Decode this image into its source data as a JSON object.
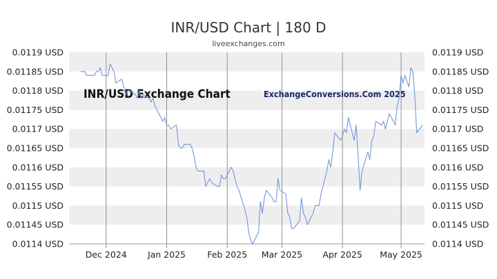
{
  "page": {
    "title": "INR/USD Chart | 180 D",
    "subtitle": "liveexchanges.com"
  },
  "chart_data": {
    "type": "line",
    "title": "INR/USD Chart | 180 D",
    "subtitle": "liveexchanges.com",
    "watermarks": [
      "INR/USD Exchange Chart",
      "ExchangeConversions.Com 2025"
    ],
    "xlabel": "",
    "ylabel": "",
    "ylim": [
      0.0114,
      0.0119
    ],
    "y_ticks": [
      0.0114,
      0.01145,
      0.0115,
      0.01155,
      0.0116,
      0.01165,
      0.0117,
      0.01175,
      0.0118,
      0.01185,
      0.0119
    ],
    "y_tick_labels": [
      "0.0114 USD",
      "0.01145 USD",
      "0.0115 USD",
      "0.01155 USD",
      "0.0116 USD",
      "0.01165 USD",
      "0.0117 USD",
      "0.01175 USD",
      "0.0118 USD",
      "0.01185 USD",
      "0.0119 USD"
    ],
    "x_range": [
      "2024-11-12",
      "2025-05-13"
    ],
    "x_ticks": [
      {
        "date": "2024-12-01",
        "label": "Dec 2024"
      },
      {
        "date": "2025-01-01",
        "label": "Jan 2025"
      },
      {
        "date": "2025-02-01",
        "label": "Feb 2025"
      },
      {
        "date": "2025-03-01",
        "label": "Mar 2025"
      },
      {
        "date": "2025-04-01",
        "label": "Apr 2025"
      },
      {
        "date": "2025-05-01",
        "label": "May 2025"
      }
    ],
    "grid": true,
    "legend": "none",
    "line_color": "#7196d8",
    "band_color": "#eeeeee",
    "series": [
      {
        "points": [
          [
            "2024-11-18",
            0.01185
          ],
          [
            "2024-11-20",
            0.01185
          ],
          [
            "2024-11-21",
            0.01184
          ],
          [
            "2024-11-25",
            0.01184
          ],
          [
            "2024-11-26",
            0.01185
          ],
          [
            "2024-11-27",
            0.01185
          ],
          [
            "2024-11-28",
            0.01186
          ],
          [
            "2024-11-29",
            0.01184
          ],
          [
            "2024-12-02",
            0.01184
          ],
          [
            "2024-12-03",
            0.01187
          ],
          [
            "2024-12-04",
            0.01186
          ],
          [
            "2024-12-05",
            0.01185
          ],
          [
            "2024-12-06",
            0.01182
          ],
          [
            "2024-12-09",
            0.01183
          ],
          [
            "2024-12-10",
            0.01181
          ],
          [
            "2024-12-11",
            0.01179
          ],
          [
            "2024-12-12",
            0.0118
          ],
          [
            "2024-12-13",
            0.0118
          ],
          [
            "2024-12-16",
            0.01179
          ],
          [
            "2024-12-17",
            0.01178
          ],
          [
            "2024-12-18",
            0.0118
          ],
          [
            "2024-12-19",
            0.01178
          ],
          [
            "2024-12-20",
            0.01179
          ],
          [
            "2024-12-23",
            0.01178
          ],
          [
            "2024-12-24",
            0.01177
          ],
          [
            "2024-12-25",
            0.01178
          ],
          [
            "2024-12-26",
            0.01176
          ],
          [
            "2024-12-27",
            0.01175
          ],
          [
            "2024-12-30",
            0.01172
          ],
          [
            "2024-12-31",
            0.01173
          ],
          [
            "2025-01-01",
            0.01171
          ],
          [
            "2025-01-02",
            0.01171
          ],
          [
            "2025-01-03",
            0.0117
          ],
          [
            "2025-01-06",
            0.01171
          ],
          [
            "2025-01-07",
            0.01166
          ],
          [
            "2025-01-08",
            0.01165
          ],
          [
            "2025-01-09",
            0.01165
          ],
          [
            "2025-01-10",
            0.01166
          ],
          [
            "2025-01-13",
            0.01166
          ],
          [
            "2025-01-14",
            0.01165
          ],
          [
            "2025-01-15",
            0.01163
          ],
          [
            "2025-01-16",
            0.0116
          ],
          [
            "2025-01-17",
            0.01159
          ],
          [
            "2025-01-20",
            0.01159
          ],
          [
            "2025-01-21",
            0.01155
          ],
          [
            "2025-01-22",
            0.01156
          ],
          [
            "2025-01-23",
            0.01157
          ],
          [
            "2025-01-24",
            0.01156
          ],
          [
            "2025-01-27",
            0.01155
          ],
          [
            "2025-01-28",
            0.01155
          ],
          [
            "2025-01-29",
            0.01158
          ],
          [
            "2025-01-30",
            0.01157
          ],
          [
            "2025-01-31",
            0.01157
          ],
          [
            "2025-02-03",
            0.0116
          ],
          [
            "2025-02-04",
            0.01159
          ],
          [
            "2025-02-05",
            0.01157
          ],
          [
            "2025-02-06",
            0.01155
          ],
          [
            "2025-02-07",
            0.01154
          ],
          [
            "2025-02-10",
            0.01149
          ],
          [
            "2025-02-11",
            0.01147
          ],
          [
            "2025-02-12",
            0.01143
          ],
          [
            "2025-02-13",
            0.01141
          ],
          [
            "2025-02-14",
            0.0114
          ],
          [
            "2025-02-17",
            0.01143
          ],
          [
            "2025-02-18",
            0.01151
          ],
          [
            "2025-02-19",
            0.01148
          ],
          [
            "2025-02-20",
            0.01152
          ],
          [
            "2025-02-21",
            0.01154
          ],
          [
            "2025-02-24",
            0.01152
          ],
          [
            "2025-02-25",
            0.01151
          ],
          [
            "2025-02-26",
            0.01151
          ],
          [
            "2025-02-27",
            0.01157
          ],
          [
            "2025-02-28",
            0.01154
          ],
          [
            "2025-03-03",
            0.01153
          ],
          [
            "2025-03-04",
            0.01148
          ],
          [
            "2025-03-05",
            0.01147
          ],
          [
            "2025-03-06",
            0.01144
          ],
          [
            "2025-03-07",
            0.01144
          ],
          [
            "2025-03-10",
            0.01146
          ],
          [
            "2025-03-11",
            0.01152
          ],
          [
            "2025-03-12",
            0.01148
          ],
          [
            "2025-03-13",
            0.01147
          ],
          [
            "2025-03-14",
            0.01145
          ],
          [
            "2025-03-17",
            0.01148
          ],
          [
            "2025-03-18",
            0.0115
          ],
          [
            "2025-03-19",
            0.0115
          ],
          [
            "2025-03-20",
            0.0115
          ],
          [
            "2025-03-21",
            0.01153
          ],
          [
            "2025-03-24",
            0.01159
          ],
          [
            "2025-03-25",
            0.01162
          ],
          [
            "2025-03-26",
            0.0116
          ],
          [
            "2025-03-27",
            0.01164
          ],
          [
            "2025-03-28",
            0.01169
          ],
          [
            "2025-03-31",
            0.01167
          ],
          [
            "2025-04-01",
            0.01168
          ],
          [
            "2025-04-02",
            0.0117
          ],
          [
            "2025-04-03",
            0.01169
          ],
          [
            "2025-04-04",
            0.01173
          ],
          [
            "2025-04-07",
            0.01167
          ],
          [
            "2025-04-08",
            0.01171
          ],
          [
            "2025-04-09",
            0.01163
          ],
          [
            "2025-04-10",
            0.01154
          ],
          [
            "2025-04-11",
            0.01159
          ],
          [
            "2025-04-14",
            0.01164
          ],
          [
            "2025-04-15",
            0.01162
          ],
          [
            "2025-04-16",
            0.01167
          ],
          [
            "2025-04-17",
            0.01168
          ],
          [
            "2025-04-18",
            0.01172
          ],
          [
            "2025-04-21",
            0.01171
          ],
          [
            "2025-04-22",
            0.01172
          ],
          [
            "2025-04-23",
            0.0117
          ],
          [
            "2025-04-24",
            0.01172
          ],
          [
            "2025-04-25",
            0.01174
          ],
          [
            "2025-04-28",
            0.01171
          ],
          [
            "2025-04-29",
            0.01176
          ],
          [
            "2025-04-30",
            0.01178
          ],
          [
            "2025-05-01",
            0.01184
          ],
          [
            "2025-05-02",
            0.01182
          ],
          [
            "2025-05-03",
            0.01184
          ],
          [
            "2025-05-05",
            0.01181
          ],
          [
            "2025-05-06",
            0.01186
          ],
          [
            "2025-05-07",
            0.01185
          ],
          [
            "2025-05-08",
            0.01179
          ],
          [
            "2025-05-09",
            0.01169
          ],
          [
            "2025-05-12",
            0.01171
          ]
        ]
      }
    ]
  }
}
